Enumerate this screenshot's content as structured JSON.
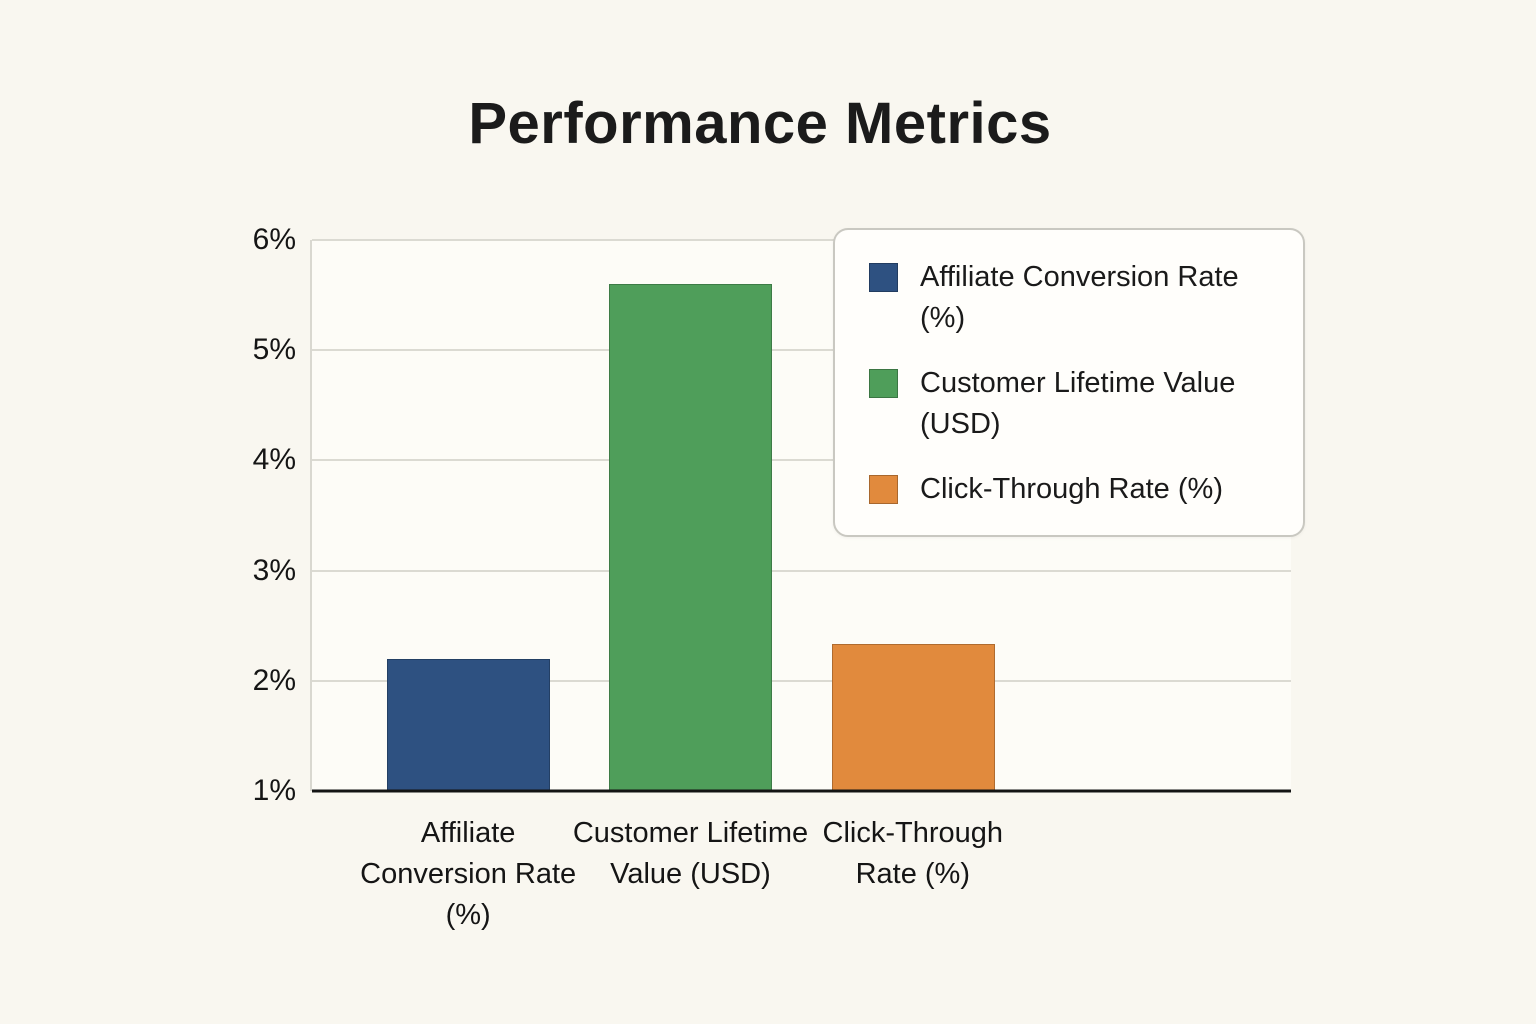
{
  "title": "Performance Metrics",
  "chart_data": {
    "type": "bar",
    "title": "Performance Metrics",
    "categories": [
      "Affiliate Conversion Rate (%)",
      "Customer Lifetime Value (USD)",
      "Click-Through Rate (%)"
    ],
    "values": [
      2.2,
      5.6,
      2.33
    ],
    "colors": [
      "#2e5181",
      "#4f9e5a",
      "#e18a3d"
    ],
    "xlabel": "",
    "ylabel": "",
    "ylim": [
      1,
      6
    ],
    "y_ticks": [
      "1%",
      "2%",
      "3%",
      "4%",
      "5%",
      "6%"
    ],
    "grid": true,
    "legend": {
      "position": "upper right",
      "entries": [
        {
          "label": "Affiliate Conversion Rate (%)",
          "color": "#2e5181"
        },
        {
          "label": "Customer Lifetime Value (USD)",
          "color": "#4f9e5a"
        },
        {
          "label": "Click-Through Rate (%)",
          "color": "#e18a3d"
        }
      ]
    }
  }
}
